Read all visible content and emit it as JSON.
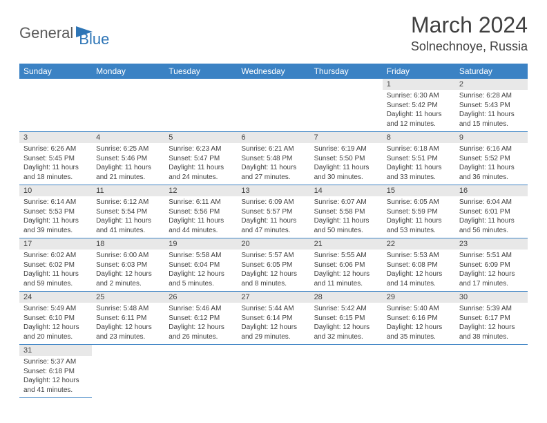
{
  "logo": {
    "text1": "General",
    "text2": "Blue"
  },
  "title": "March 2024",
  "location": "Solnechnoye, Russia",
  "colors": {
    "header_bg": "#3b82c4",
    "header_text": "#ffffff",
    "daynum_bg": "#e8e8e8",
    "text": "#404040",
    "border": "#3b82c4",
    "logo_gray": "#5a5a5a",
    "logo_blue": "#2e75b6"
  },
  "day_labels": [
    "Sunday",
    "Monday",
    "Tuesday",
    "Wednesday",
    "Thursday",
    "Friday",
    "Saturday"
  ],
  "weeks": [
    [
      null,
      null,
      null,
      null,
      null,
      {
        "n": "1",
        "sr": "Sunrise: 6:30 AM",
        "ss": "Sunset: 5:42 PM",
        "d1": "Daylight: 11 hours",
        "d2": "and 12 minutes."
      },
      {
        "n": "2",
        "sr": "Sunrise: 6:28 AM",
        "ss": "Sunset: 5:43 PM",
        "d1": "Daylight: 11 hours",
        "d2": "and 15 minutes."
      }
    ],
    [
      {
        "n": "3",
        "sr": "Sunrise: 6:26 AM",
        "ss": "Sunset: 5:45 PM",
        "d1": "Daylight: 11 hours",
        "d2": "and 18 minutes."
      },
      {
        "n": "4",
        "sr": "Sunrise: 6:25 AM",
        "ss": "Sunset: 5:46 PM",
        "d1": "Daylight: 11 hours",
        "d2": "and 21 minutes."
      },
      {
        "n": "5",
        "sr": "Sunrise: 6:23 AM",
        "ss": "Sunset: 5:47 PM",
        "d1": "Daylight: 11 hours",
        "d2": "and 24 minutes."
      },
      {
        "n": "6",
        "sr": "Sunrise: 6:21 AM",
        "ss": "Sunset: 5:48 PM",
        "d1": "Daylight: 11 hours",
        "d2": "and 27 minutes."
      },
      {
        "n": "7",
        "sr": "Sunrise: 6:19 AM",
        "ss": "Sunset: 5:50 PM",
        "d1": "Daylight: 11 hours",
        "d2": "and 30 minutes."
      },
      {
        "n": "8",
        "sr": "Sunrise: 6:18 AM",
        "ss": "Sunset: 5:51 PM",
        "d1": "Daylight: 11 hours",
        "d2": "and 33 minutes."
      },
      {
        "n": "9",
        "sr": "Sunrise: 6:16 AM",
        "ss": "Sunset: 5:52 PM",
        "d1": "Daylight: 11 hours",
        "d2": "and 36 minutes."
      }
    ],
    [
      {
        "n": "10",
        "sr": "Sunrise: 6:14 AM",
        "ss": "Sunset: 5:53 PM",
        "d1": "Daylight: 11 hours",
        "d2": "and 39 minutes."
      },
      {
        "n": "11",
        "sr": "Sunrise: 6:12 AM",
        "ss": "Sunset: 5:54 PM",
        "d1": "Daylight: 11 hours",
        "d2": "and 41 minutes."
      },
      {
        "n": "12",
        "sr": "Sunrise: 6:11 AM",
        "ss": "Sunset: 5:56 PM",
        "d1": "Daylight: 11 hours",
        "d2": "and 44 minutes."
      },
      {
        "n": "13",
        "sr": "Sunrise: 6:09 AM",
        "ss": "Sunset: 5:57 PM",
        "d1": "Daylight: 11 hours",
        "d2": "and 47 minutes."
      },
      {
        "n": "14",
        "sr": "Sunrise: 6:07 AM",
        "ss": "Sunset: 5:58 PM",
        "d1": "Daylight: 11 hours",
        "d2": "and 50 minutes."
      },
      {
        "n": "15",
        "sr": "Sunrise: 6:05 AM",
        "ss": "Sunset: 5:59 PM",
        "d1": "Daylight: 11 hours",
        "d2": "and 53 minutes."
      },
      {
        "n": "16",
        "sr": "Sunrise: 6:04 AM",
        "ss": "Sunset: 6:01 PM",
        "d1": "Daylight: 11 hours",
        "d2": "and 56 minutes."
      }
    ],
    [
      {
        "n": "17",
        "sr": "Sunrise: 6:02 AM",
        "ss": "Sunset: 6:02 PM",
        "d1": "Daylight: 11 hours",
        "d2": "and 59 minutes."
      },
      {
        "n": "18",
        "sr": "Sunrise: 6:00 AM",
        "ss": "Sunset: 6:03 PM",
        "d1": "Daylight: 12 hours",
        "d2": "and 2 minutes."
      },
      {
        "n": "19",
        "sr": "Sunrise: 5:58 AM",
        "ss": "Sunset: 6:04 PM",
        "d1": "Daylight: 12 hours",
        "d2": "and 5 minutes."
      },
      {
        "n": "20",
        "sr": "Sunrise: 5:57 AM",
        "ss": "Sunset: 6:05 PM",
        "d1": "Daylight: 12 hours",
        "d2": "and 8 minutes."
      },
      {
        "n": "21",
        "sr": "Sunrise: 5:55 AM",
        "ss": "Sunset: 6:06 PM",
        "d1": "Daylight: 12 hours",
        "d2": "and 11 minutes."
      },
      {
        "n": "22",
        "sr": "Sunrise: 5:53 AM",
        "ss": "Sunset: 6:08 PM",
        "d1": "Daylight: 12 hours",
        "d2": "and 14 minutes."
      },
      {
        "n": "23",
        "sr": "Sunrise: 5:51 AM",
        "ss": "Sunset: 6:09 PM",
        "d1": "Daylight: 12 hours",
        "d2": "and 17 minutes."
      }
    ],
    [
      {
        "n": "24",
        "sr": "Sunrise: 5:49 AM",
        "ss": "Sunset: 6:10 PM",
        "d1": "Daylight: 12 hours",
        "d2": "and 20 minutes."
      },
      {
        "n": "25",
        "sr": "Sunrise: 5:48 AM",
        "ss": "Sunset: 6:11 PM",
        "d1": "Daylight: 12 hours",
        "d2": "and 23 minutes."
      },
      {
        "n": "26",
        "sr": "Sunrise: 5:46 AM",
        "ss": "Sunset: 6:12 PM",
        "d1": "Daylight: 12 hours",
        "d2": "and 26 minutes."
      },
      {
        "n": "27",
        "sr": "Sunrise: 5:44 AM",
        "ss": "Sunset: 6:14 PM",
        "d1": "Daylight: 12 hours",
        "d2": "and 29 minutes."
      },
      {
        "n": "28",
        "sr": "Sunrise: 5:42 AM",
        "ss": "Sunset: 6:15 PM",
        "d1": "Daylight: 12 hours",
        "d2": "and 32 minutes."
      },
      {
        "n": "29",
        "sr": "Sunrise: 5:40 AM",
        "ss": "Sunset: 6:16 PM",
        "d1": "Daylight: 12 hours",
        "d2": "and 35 minutes."
      },
      {
        "n": "30",
        "sr": "Sunrise: 5:39 AM",
        "ss": "Sunset: 6:17 PM",
        "d1": "Daylight: 12 hours",
        "d2": "and 38 minutes."
      }
    ],
    [
      {
        "n": "31",
        "sr": "Sunrise: 5:37 AM",
        "ss": "Sunset: 6:18 PM",
        "d1": "Daylight: 12 hours",
        "d2": "and 41 minutes."
      },
      null,
      null,
      null,
      null,
      null,
      null
    ]
  ]
}
